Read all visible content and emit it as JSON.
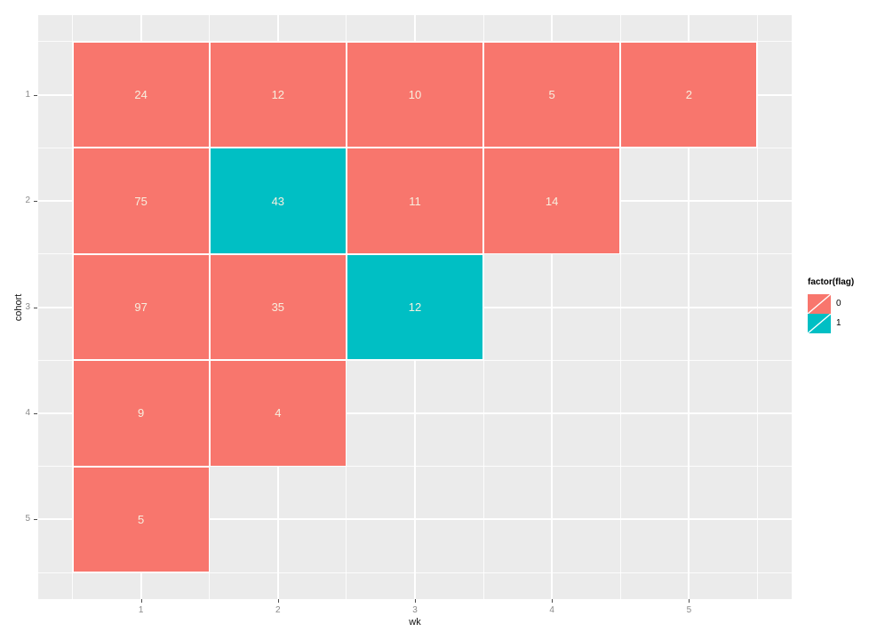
{
  "chart_data": {
    "type": "heatmap",
    "title": "",
    "xlabel": "wk",
    "ylabel": "cohort",
    "x_ticks": [
      1,
      2,
      3,
      4,
      5
    ],
    "y_ticks": [
      1,
      2,
      3,
      4,
      5
    ],
    "x_range": [
      0.25,
      5.75
    ],
    "y_range": [
      0.25,
      5.75
    ],
    "y_reversed": true,
    "grid": "on",
    "legend_position": "right",
    "legend": {
      "title": "factor(flag)",
      "entries": [
        {
          "label": "0",
          "color": "#F8766D"
        },
        {
          "label": "1",
          "color": "#00BFC4"
        }
      ]
    },
    "tiles": [
      {
        "wk": 1,
        "cohort": 1,
        "value": 24,
        "flag": 0
      },
      {
        "wk": 2,
        "cohort": 1,
        "value": 12,
        "flag": 0
      },
      {
        "wk": 3,
        "cohort": 1,
        "value": 10,
        "flag": 0
      },
      {
        "wk": 4,
        "cohort": 1,
        "value": 5,
        "flag": 0
      },
      {
        "wk": 5,
        "cohort": 1,
        "value": 2,
        "flag": 0
      },
      {
        "wk": 1,
        "cohort": 2,
        "value": 75,
        "flag": 0
      },
      {
        "wk": 2,
        "cohort": 2,
        "value": 43,
        "flag": 1
      },
      {
        "wk": 3,
        "cohort": 2,
        "value": 11,
        "flag": 0
      },
      {
        "wk": 4,
        "cohort": 2,
        "value": 14,
        "flag": 0
      },
      {
        "wk": 1,
        "cohort": 3,
        "value": 97,
        "flag": 0
      },
      {
        "wk": 2,
        "cohort": 3,
        "value": 35,
        "flag": 0
      },
      {
        "wk": 3,
        "cohort": 3,
        "value": 12,
        "flag": 1
      },
      {
        "wk": 1,
        "cohort": 4,
        "value": 9,
        "flag": 0
      },
      {
        "wk": 2,
        "cohort": 4,
        "value": 4,
        "flag": 0
      },
      {
        "wk": 1,
        "cohort": 5,
        "value": 5,
        "flag": 0
      }
    ],
    "colors": {
      "background": "#FFFFFF",
      "panel_background": "#EBEBEB",
      "grid_major": "#FFFFFF",
      "grid_minor": "#FFFFFF",
      "tile_border": "#FFFFFF",
      "flag0": "#F8766D",
      "flag1": "#00BFC4",
      "value_text": "#F7EFDF",
      "tick_mark": "#4d4d4d",
      "tick_label": "#8a8a8a",
      "axis_title": "#111111",
      "legend_key_slash": "#FFFFFF"
    }
  }
}
